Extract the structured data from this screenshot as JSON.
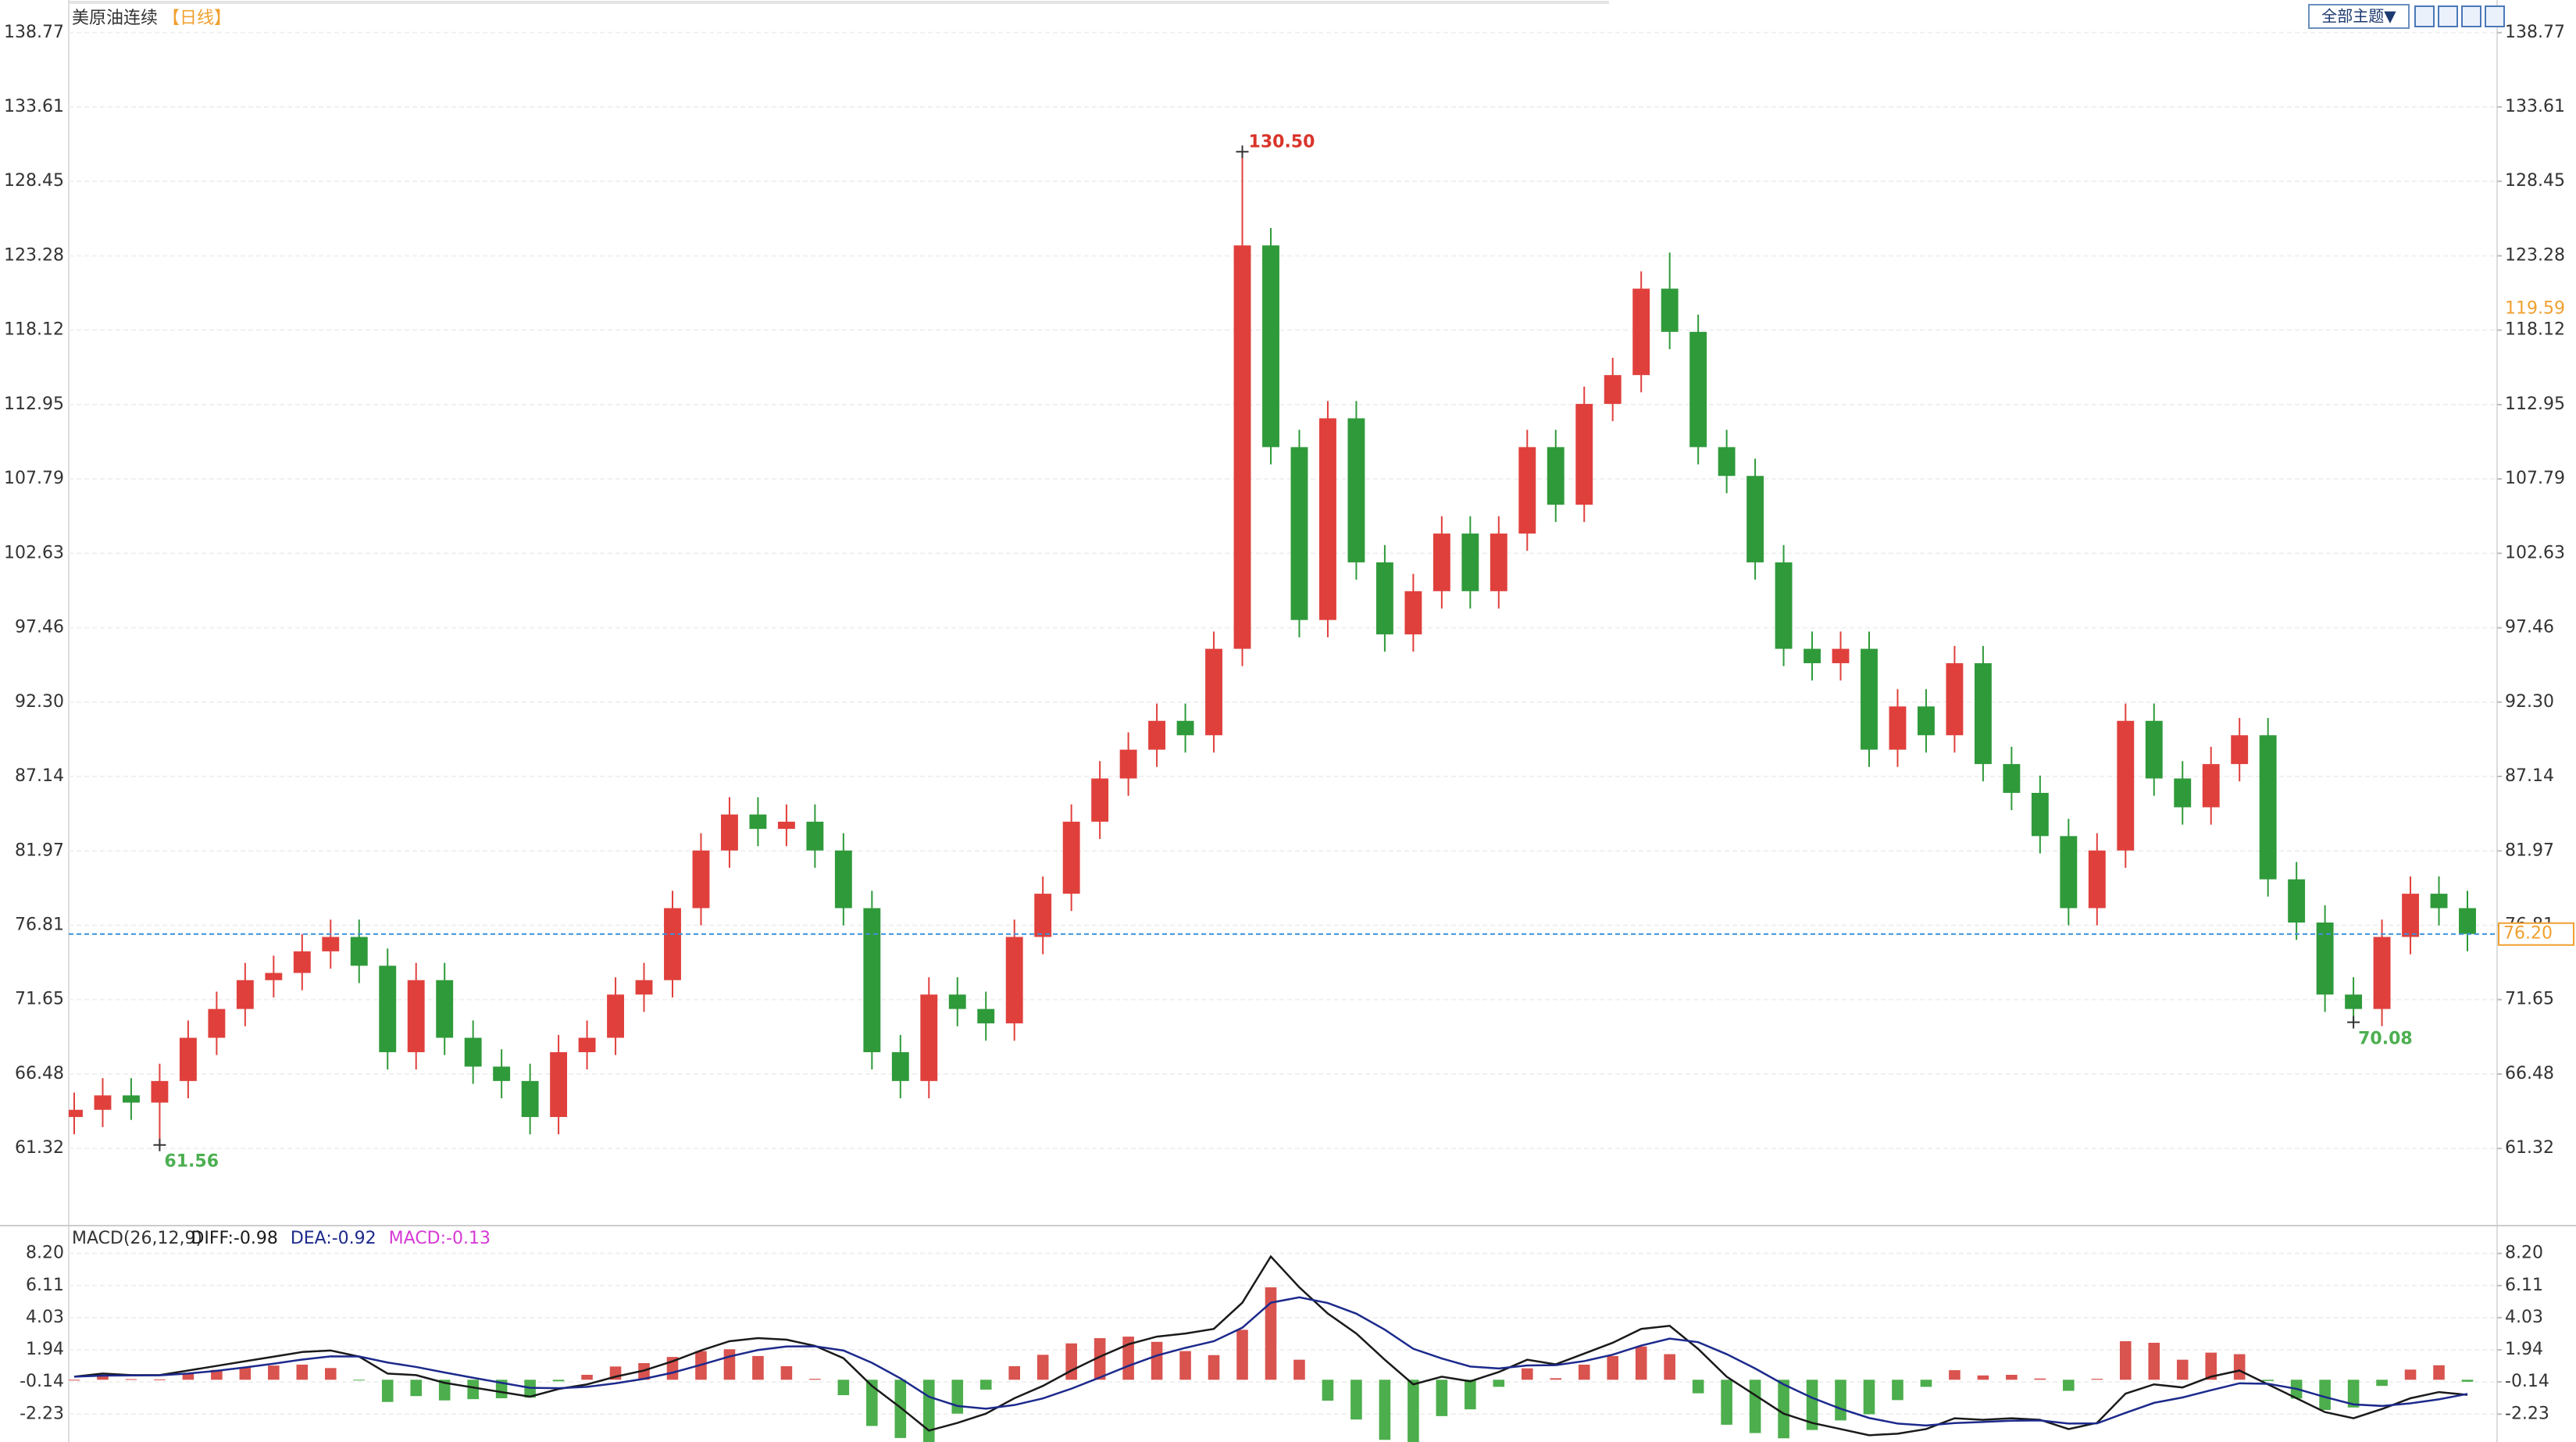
{
  "header": {
    "title": "美原油连续",
    "period": "【日线】"
  },
  "toolbar": {
    "theme_button": "全部主题▼"
  },
  "chart_data": [
    {
      "type": "candlestick",
      "open": [
        63.5,
        64,
        65,
        64.5,
        66,
        69,
        71,
        73,
        73.5,
        75,
        76,
        74,
        68,
        73,
        69,
        67,
        66,
        63.5,
        68,
        69,
        72,
        73,
        78,
        82,
        84.5,
        83.5,
        84,
        82,
        78,
        68,
        66,
        72,
        71,
        70,
        76,
        79,
        84,
        87,
        89,
        91,
        90,
        96,
        124,
        110,
        98,
        112,
        102,
        97,
        100,
        104,
        100,
        104,
        110,
        106,
        113,
        115,
        121,
        118,
        110,
        108,
        102,
        96,
        95,
        96,
        89,
        92,
        90,
        95,
        88,
        86,
        83,
        78,
        82,
        91,
        87,
        85,
        88,
        90,
        80,
        77,
        72,
        71,
        76,
        79,
        78
      ],
      "high": [
        65.2,
        66.2,
        66.2,
        67.2,
        70.2,
        72.2,
        74.2,
        74.7,
        76.2,
        77.2,
        77.2,
        75.2,
        74.2,
        74.2,
        70.2,
        68.2,
        67.2,
        69.2,
        70.2,
        73.2,
        74.2,
        79.2,
        83.2,
        85.7,
        85.7,
        85.2,
        85.2,
        83.2,
        79.2,
        69.2,
        73.2,
        73.2,
        72.2,
        77.2,
        80.2,
        85.2,
        88.2,
        90.2,
        92.2,
        92.2,
        97.2,
        130.5,
        125.2,
        111.2,
        113.2,
        113.2,
        103.2,
        101.2,
        105.2,
        105.2,
        105.2,
        111.2,
        111.2,
        114.2,
        116.2,
        122.2,
        123.5,
        119.2,
        111.2,
        109.2,
        103.2,
        97.2,
        97.2,
        97.2,
        93.2,
        93.2,
        96.2,
        96.2,
        89.2,
        87.2,
        84.2,
        83.2,
        92.2,
        92.2,
        88.2,
        89.2,
        91.2,
        91.2,
        81.2,
        78.2,
        73.2,
        77.2,
        80.2,
        80.2,
        79.2
      ],
      "low": [
        62.3,
        62.8,
        63.3,
        61.56,
        64.8,
        67.8,
        69.8,
        71.8,
        72.3,
        73.8,
        72.8,
        66.8,
        66.8,
        67.8,
        65.8,
        64.8,
        62.3,
        62.3,
        66.8,
        67.8,
        70.8,
        71.8,
        76.8,
        80.8,
        82.3,
        82.3,
        80.8,
        76.8,
        66.8,
        64.8,
        64.8,
        69.8,
        68.8,
        68.8,
        74.8,
        77.8,
        82.8,
        85.8,
        87.8,
        88.8,
        88.8,
        94.8,
        108.8,
        96.8,
        96.8,
        100.8,
        95.8,
        95.8,
        98.8,
        98.8,
        98.8,
        102.8,
        104.8,
        104.8,
        111.8,
        113.8,
        116.8,
        108.8,
        106.8,
        100.8,
        94.8,
        93.8,
        93.8,
        87.8,
        87.8,
        88.8,
        88.8,
        86.8,
        84.8,
        81.8,
        76.8,
        76.8,
        80.8,
        85.8,
        83.8,
        83.8,
        86.8,
        78.8,
        75.8,
        70.8,
        70.08,
        69.8,
        74.8,
        76.8,
        75
      ],
      "close": [
        64,
        65,
        64.5,
        66,
        69,
        71,
        73,
        73.5,
        75,
        76,
        74,
        68,
        73,
        69,
        67,
        66,
        63.5,
        68,
        69,
        72,
        73,
        78,
        82,
        84.5,
        83.5,
        84,
        82,
        78,
        68,
        66,
        72,
        71,
        70,
        76,
        79,
        84,
        87,
        89,
        91,
        90,
        96,
        124,
        110,
        98,
        112,
        102,
        97,
        100,
        104,
        100,
        104,
        110,
        106,
        113,
        115,
        121,
        118,
        110,
        108,
        102,
        96,
        95,
        96,
        89,
        92,
        90,
        95,
        88,
        86,
        83,
        78,
        82,
        91,
        87,
        85,
        88,
        90,
        80,
        77,
        72,
        71,
        76,
        79,
        78,
        76.2
      ],
      "up_color": "#e0403c",
      "down_color": "#2f9a3a",
      "ylim": [
        56.07,
        140.71
      ],
      "yticks": [
        138.77,
        133.61,
        128.45,
        123.28,
        118.12,
        112.95,
        107.79,
        102.63,
        97.46,
        {
          "value": 92.3,
          "label": "92.30"
        },
        87.14,
        81.97,
        76.81,
        71.65,
        66.48,
        61.32
      ],
      "grid": true,
      "high_label": {
        "value": 130.5,
        "label": "130.50",
        "color": "#d9342b"
      },
      "low_labels": [
        {
          "value": 61.56,
          "label": "61.56",
          "color": "#4caf50"
        },
        {
          "value": 70.08,
          "label": "70.08",
          "color": "#4caf50"
        }
      ],
      "last_price": {
        "value": 76.2,
        "label": "76.20",
        "color": "#f0a030",
        "line_color": "#3a8fd8"
      },
      "cursor_price": 119.59
    },
    {
      "type": "macd",
      "title": "MACD(26,12,9)",
      "ylim": [
        -4.04,
        9.8
      ],
      "yticks": [
        {
          "value": 8.2,
          "label": "8.20"
        },
        6.11,
        4.03,
        1.94,
        -0.14,
        -2.23
      ],
      "grid": true,
      "series": [
        {
          "label": "DIFF:-0.98",
          "color": "#1a1a1a",
          "values": [
            0.2,
            0.4,
            0.3,
            0.3,
            0.6,
            0.9,
            1.2,
            1.5,
            1.8,
            1.9,
            1.5,
            0.4,
            0.3,
            -0.2,
            -0.5,
            -0.8,
            -1.1,
            -0.6,
            -0.3,
            0.2,
            0.6,
            1.2,
            1.9,
            2.5,
            2.7,
            2.6,
            2.2,
            1.4,
            -0.4,
            -1.8,
            -3.3,
            -2.8,
            -2.2,
            -1.2,
            -0.4,
            0.6,
            1.5,
            2.3,
            2.8,
            3,
            3.3,
            5,
            8,
            6,
            4.3,
            3,
            1.3,
            -0.3,
            0.2,
            -0.1,
            0.5,
            1.3,
            1,
            1.7,
            2.4,
            3.3,
            3.5,
            2,
            0.2,
            -1,
            -2.2,
            -2.8,
            -3.2,
            -3.6,
            -3.5,
            -3.2,
            -2.5,
            -2.6,
            -2.5,
            -2.6,
            -3.2,
            -2.8,
            -0.9,
            -0.3,
            -0.5,
            0.2,
            0.6,
            -0.3,
            -1.2,
            -2.1,
            -2.5,
            -1.9,
            -1.2,
            -0.8,
            -0.98
          ]
        },
        {
          "label": "DEA:-0.92",
          "color": "#1c2a8c",
          "values": [
            0.2,
            0.27,
            0.28,
            0.29,
            0.4,
            0.58,
            0.8,
            1.04,
            1.31,
            1.52,
            1.51,
            1.12,
            0.83,
            0.47,
            0.13,
            -0.2,
            -0.52,
            -0.55,
            -0.46,
            -0.23,
            0.06,
            0.46,
            0.97,
            1.51,
            1.93,
            2.16,
            2.17,
            1.9,
            1.1,
            0.09,
            -1.1,
            -1.7,
            -1.88,
            -1.64,
            -1.21,
            -0.58,
            0.15,
            0.9,
            1.57,
            2.07,
            2.5,
            3.38,
            5,
            5.35,
            4.98,
            4.29,
            3.25,
            2.01,
            1.38,
            0.86,
            0.73,
            0.93,
            0.95,
            1.21,
            1.63,
            2.22,
            2.67,
            2.44,
            1.66,
            0.73,
            -0.3,
            -1.17,
            -1.88,
            -2.48,
            -2.84,
            -2.97,
            -2.81,
            -2.74,
            -2.66,
            -2.64,
            -2.84,
            -2.83,
            -2.15,
            -1.5,
            -1.15,
            -0.68,
            -0.23,
            -0.26,
            -0.59,
            -1.12,
            -1.6,
            -1.7,
            -1.53,
            -1.27,
            -0.92
          ]
        },
        {
          "label": "MACD:-0.13",
          "color": "#d63ad6",
          "up_color": "#d9534f",
          "down_color": "#4cae4c",
          "values": [
            0,
            0.26,
            0.04,
            0.02,
            0.4,
            0.64,
            0.8,
            0.92,
            0.98,
            0.76,
            -0.02,
            -1.44,
            -1.06,
            -1.34,
            -1.26,
            -1.2,
            -1.16,
            -0.1,
            0.32,
            0.86,
            1.08,
            1.48,
            1.86,
            1.98,
            1.54,
            0.88,
            0.06,
            -1,
            -3,
            -3.78,
            -4.4,
            -2.2,
            -0.64,
            0.88,
            1.62,
            2.36,
            2.7,
            2.8,
            2.46,
            1.86,
            1.6,
            3.24,
            6,
            1.3,
            -1.36,
            -2.58,
            -3.9,
            -4.62,
            -2.36,
            -1.92,
            -0.46,
            0.74,
            0.1,
            0.98,
            1.54,
            2.16,
            1.66,
            -0.88,
            -2.92,
            -3.46,
            -3.8,
            -3.26,
            -2.64,
            -2.24,
            -1.32,
            -0.46,
            0.62,
            0.28,
            0.32,
            0.08,
            -0.72,
            0.06,
            2.5,
            2.4,
            1.3,
            1.76,
            1.66,
            -0.08,
            -1.22,
            -1.96,
            -1.8,
            -0.4,
            0.66,
            0.94,
            -0.13
          ]
        }
      ]
    }
  ]
}
